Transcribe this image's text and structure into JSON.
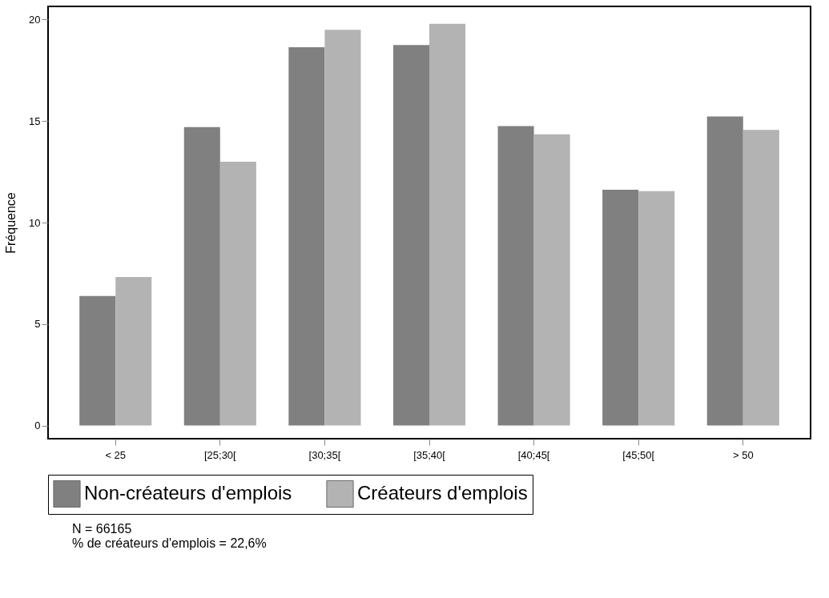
{
  "chart_data": {
    "type": "bar",
    "ylabel": "Fréquence",
    "categories": [
      "< 25",
      "[25;30[",
      "[30;35[",
      "[35;40[",
      "[40;45[",
      "[45;50[",
      "> 50"
    ],
    "series": [
      {
        "name": "Non-créateurs d'emplois",
        "color": "#808080",
        "values": [
          6.38,
          14.7,
          18.64,
          18.75,
          14.75,
          11.62,
          15.23
        ]
      },
      {
        "name": "Créateurs d'emplois",
        "color": "#b3b3b3",
        "values": [
          7.32,
          13.0,
          19.5,
          19.79,
          14.35,
          11.55,
          14.57
        ]
      }
    ],
    "ylim": [
      -0.65,
      20.65
    ],
    "yticks": [
      0,
      5,
      10,
      15,
      20
    ],
    "grid": false,
    "legend": "bottom",
    "annotations": [
      "N = 66165",
      "% de créateurs d'emplois = 22,6%"
    ]
  }
}
